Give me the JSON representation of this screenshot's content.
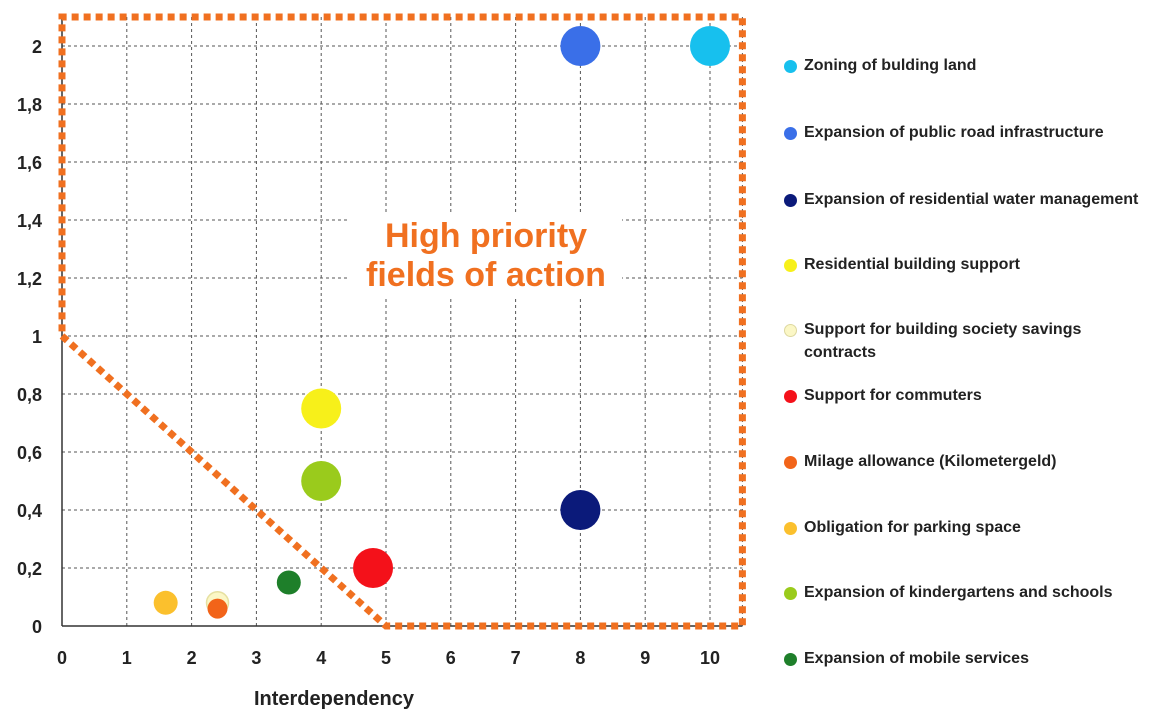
{
  "chart_data": {
    "type": "scatter",
    "title": "",
    "xlabel": "Interdependency",
    "ylabel": "",
    "xlim": [
      0,
      10.5
    ],
    "ylim": [
      0,
      2.1
    ],
    "x_ticks": [
      "0",
      "1",
      "2",
      "3",
      "4",
      "5",
      "6",
      "7",
      "8",
      "9",
      "10"
    ],
    "y_ticks": [
      "0",
      "0,2",
      "0,4",
      "0,6",
      "0,8",
      "1",
      "1,2",
      "1,4",
      "1,6",
      "1,8",
      "2"
    ],
    "grid": true,
    "legend_position": "right",
    "annotation": {
      "lines": [
        "High priority",
        "fields of action"
      ],
      "color": "#f07020",
      "region_boundary": [
        [
          0,
          1
        ],
        [
          5,
          0
        ],
        [
          10.5,
          0
        ],
        [
          10.5,
          2.1
        ],
        [
          0,
          2.1
        ]
      ]
    },
    "series": [
      {
        "name": "Zoning of bulding land",
        "color": "#17c0ee",
        "points": [
          {
            "x": 10,
            "y": 2.0
          }
        ]
      },
      {
        "name": "Expansion of public road infrastructure",
        "color": "#3a6fe8",
        "points": [
          {
            "x": 8,
            "y": 2.0
          }
        ]
      },
      {
        "name": "Expansion of residential water management",
        "color": "#0b1a7a",
        "points": [
          {
            "x": 8,
            "y": 0.4
          }
        ]
      },
      {
        "name": "Residential building support",
        "color": "#f7f01a",
        "points": [
          {
            "x": 4,
            "y": 0.75
          }
        ]
      },
      {
        "name": "Support for building society savings contracts",
        "color": "#fbf7c6",
        "points": [
          {
            "x": 2.4,
            "y": 0.08
          }
        ]
      },
      {
        "name": "Support for commuters",
        "color": "#f4111a",
        "points": [
          {
            "x": 4.8,
            "y": 0.2
          }
        ]
      },
      {
        "name": "Milage allowance (Kilometergeld)",
        "color": "#f26419",
        "points": [
          {
            "x": 2.4,
            "y": 0.06
          }
        ]
      },
      {
        "name": "Obligation for parking space",
        "color": "#fbc02d",
        "points": [
          {
            "x": 1.6,
            "y": 0.08
          }
        ]
      },
      {
        "name": "Expansion of kindergartens and schools",
        "color": "#9acb1c",
        "points": [
          {
            "x": 4,
            "y": 0.5
          }
        ]
      },
      {
        "name": "Expansion of mobile services",
        "color": "#1e7f2a",
        "points": [
          {
            "x": 3.5,
            "y": 0.15
          }
        ]
      }
    ]
  }
}
